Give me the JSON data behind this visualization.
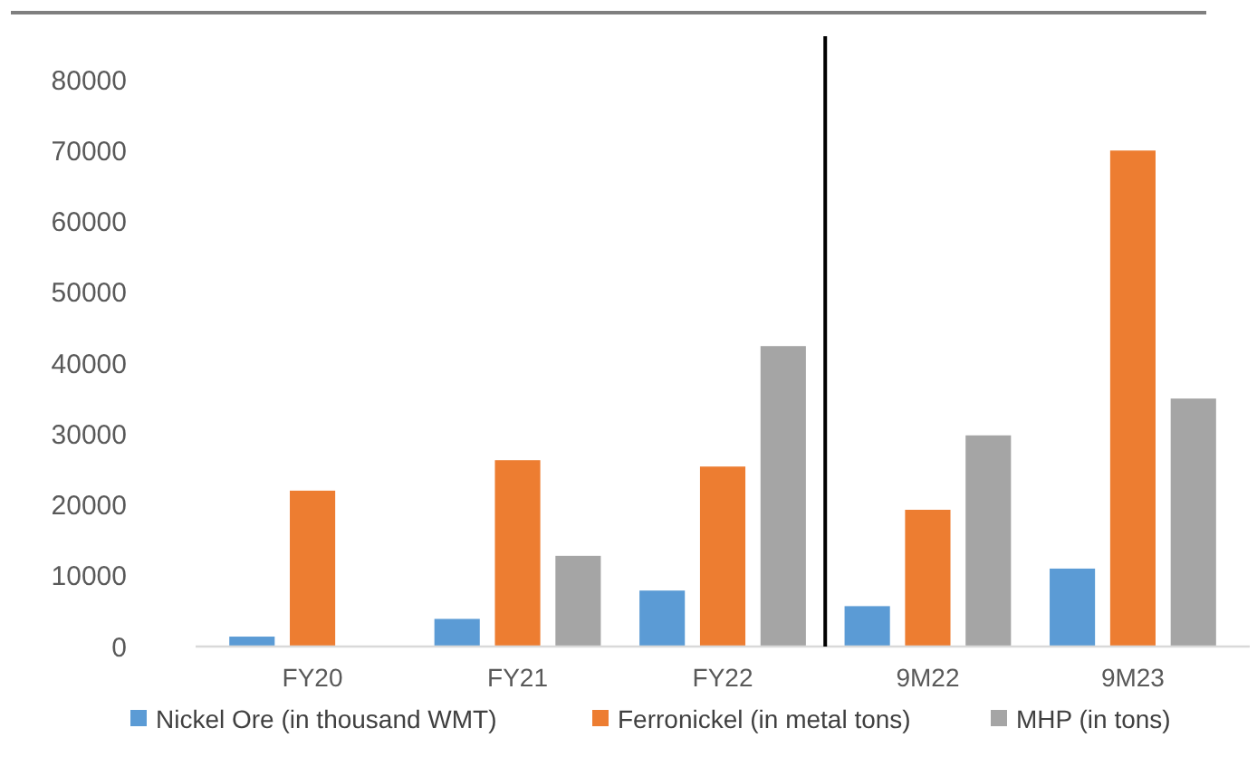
{
  "chart_data": {
    "type": "bar",
    "categories": [
      "FY20",
      "FY21",
      "FY22",
      "9M22",
      "9M23"
    ],
    "series": [
      {
        "name": "Nickel Ore (in thousand WMT)",
        "color": "#5b9bd5",
        "values": [
          1400,
          3900,
          7900,
          5700,
          11000
        ]
      },
      {
        "name": "Ferronickel (in metal tons)",
        "color": "#ed7d31",
        "values": [
          22000,
          26300,
          25400,
          19300,
          70000
        ]
      },
      {
        "name": "MHP (in tons)",
        "color": "#a5a5a5",
        "values": [
          null,
          12800,
          42400,
          29800,
          35000
        ]
      }
    ],
    "ylim": [
      0,
      80000
    ],
    "yticks": [
      0,
      10000,
      20000,
      30000,
      40000,
      50000,
      60000,
      70000,
      80000
    ],
    "grid": false,
    "legend": "bottom"
  }
}
